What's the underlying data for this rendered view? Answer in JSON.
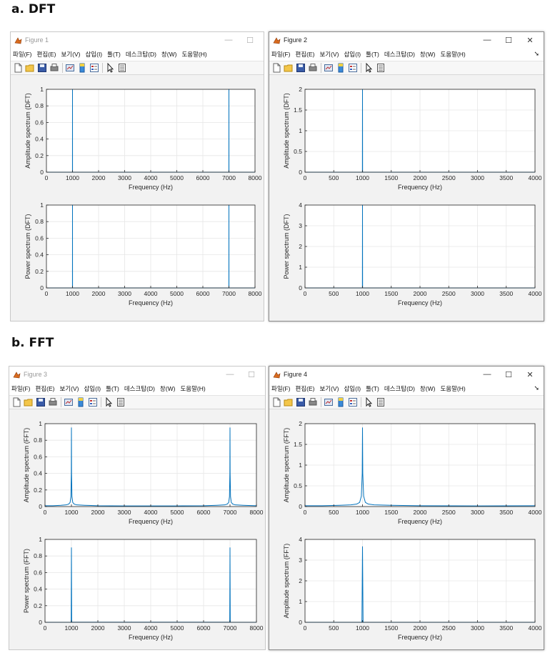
{
  "sections": [
    {
      "label": "a. DFT"
    },
    {
      "label": "b. FFT"
    }
  ],
  "menu": [
    "파일(F)",
    "편집(E)",
    "보기(V)",
    "삽입(I)",
    "툴(T)",
    "데스크탑(D)",
    "창(W)",
    "도움말(H)"
  ],
  "window_buttons": {
    "minimize": "—",
    "maximize": "☐",
    "close": "✕"
  },
  "icons": [
    "new-file-icon",
    "open-folder-icon",
    "save-icon",
    "print-icon",
    "link-plot-icon",
    "colorbar-icon",
    "legend-icon",
    "pointer-icon",
    "property-inspector-icon"
  ],
  "colors": {
    "line": "#0072bd",
    "grid": "#e6e6e6",
    "axes_bg": "#ffffff",
    "figure_bg": "#f2f2f2"
  },
  "figures": [
    {
      "title": "Figure 1",
      "active": false,
      "chart_data": [
        {
          "type": "line",
          "xlabel": "Frequency (Hz)",
          "ylabel": "Amplitude spectrum (DFT)",
          "xlim": [
            0,
            8000
          ],
          "ylim": [
            0,
            1
          ],
          "xticks": [
            0,
            1000,
            2000,
            3000,
            4000,
            5000,
            6000,
            7000,
            8000
          ],
          "yticks": [
            0,
            0.2,
            0.4,
            0.6,
            0.8,
            1
          ],
          "ytick_labels": [
            "0",
            "0.2",
            "0.4",
            "0.6",
            "0.8",
            "1"
          ],
          "grid": true,
          "series": [
            {
              "x": [
                0,
                998,
                1000,
                1002,
                6998,
                7000,
                7002,
                8000
              ],
              "y": [
                0,
                0,
                1,
                0,
                0,
                1,
                0,
                0
              ]
            }
          ]
        },
        {
          "type": "line",
          "xlabel": "Frequency (Hz)",
          "ylabel": "Power spectrum (DFT)",
          "xlim": [
            0,
            8000
          ],
          "ylim": [
            0,
            1
          ],
          "xticks": [
            0,
            1000,
            2000,
            3000,
            4000,
            5000,
            6000,
            7000,
            8000
          ],
          "yticks": [
            0,
            0.2,
            0.4,
            0.6,
            0.8,
            1
          ],
          "ytick_labels": [
            "0",
            "0.2",
            "0.4",
            "0.6",
            "0.8",
            "1"
          ],
          "grid": true,
          "series": [
            {
              "x": [
                0,
                998,
                1000,
                1002,
                6998,
                7000,
                7002,
                8000
              ],
              "y": [
                0,
                0,
                1,
                0,
                0,
                1,
                0,
                0
              ]
            }
          ]
        }
      ]
    },
    {
      "title": "Figure 2",
      "active": true,
      "chart_data": [
        {
          "type": "line",
          "xlabel": "Frequency (Hz)",
          "ylabel": "Amplitude spectrum (DFT)",
          "xlim": [
            0,
            4000
          ],
          "ylim": [
            0,
            2
          ],
          "xticks": [
            0,
            500,
            1000,
            1500,
            2000,
            2500,
            3000,
            3500,
            4000
          ],
          "yticks": [
            0,
            0.5,
            1,
            1.5,
            2
          ],
          "ytick_labels": [
            "0",
            "0.5",
            "1",
            "1.5",
            "2"
          ],
          "grid": true,
          "series": [
            {
              "x": [
                0,
                998,
                1000,
                1002,
                4000
              ],
              "y": [
                0,
                0,
                2,
                0,
                0
              ]
            }
          ]
        },
        {
          "type": "line",
          "xlabel": "Frequency (Hz)",
          "ylabel": "Power spectrum (DFT)",
          "xlim": [
            0,
            4000
          ],
          "ylim": [
            0,
            4
          ],
          "xticks": [
            0,
            500,
            1000,
            1500,
            2000,
            2500,
            3000,
            3500,
            4000
          ],
          "yticks": [
            0,
            1,
            2,
            3,
            4
          ],
          "ytick_labels": [
            "0",
            "1",
            "2",
            "3",
            "4"
          ],
          "grid": true,
          "series": [
            {
              "x": [
                0,
                998,
                1000,
                1002,
                4000
              ],
              "y": [
                0,
                0,
                4,
                0,
                0
              ]
            }
          ]
        }
      ]
    },
    {
      "title": "Figure 3",
      "active": false,
      "chart_data": [
        {
          "type": "line",
          "xlabel": "Frequency (Hz)",
          "ylabel": "Amplitude spectrum (FFT)",
          "xlim": [
            0,
            8000
          ],
          "ylim": [
            0,
            1
          ],
          "xticks": [
            0,
            1000,
            2000,
            3000,
            4000,
            5000,
            6000,
            7000,
            8000
          ],
          "yticks": [
            0,
            0.2,
            0.4,
            0.6,
            0.8,
            1
          ],
          "ytick_labels": [
            "0",
            "0.2",
            "0.4",
            "0.6",
            "0.8",
            "1"
          ],
          "grid": true,
          "series": [
            {
              "x": [
                0,
                300,
                600,
                800,
                900,
                950,
                980,
                995,
                1000,
                1005,
                1020,
                1050,
                1100,
                1200,
                1500,
                2000,
                3000,
                4000,
                5000,
                6000,
                6500,
                6800,
                6900,
                6950,
                6980,
                6995,
                7000,
                7005,
                7020,
                7050,
                7100,
                7200,
                7500,
                8000
              ],
              "y": [
                0.01,
                0.01,
                0.015,
                0.02,
                0.03,
                0.05,
                0.12,
                0.4,
                0.95,
                0.4,
                0.12,
                0.05,
                0.03,
                0.02,
                0.015,
                0.01,
                0.008,
                0.008,
                0.008,
                0.01,
                0.015,
                0.02,
                0.03,
                0.05,
                0.12,
                0.4,
                0.95,
                0.4,
                0.12,
                0.05,
                0.03,
                0.02,
                0.015,
                0.01
              ]
            }
          ]
        },
        {
          "type": "line",
          "xlabel": "Frequency (Hz)",
          "ylabel": "Power spectrum (FFT)",
          "xlim": [
            0,
            8000
          ],
          "ylim": [
            0,
            1
          ],
          "xticks": [
            0,
            1000,
            2000,
            3000,
            4000,
            5000,
            6000,
            7000,
            8000
          ],
          "yticks": [
            0,
            0.2,
            0.4,
            0.6,
            0.8,
            1
          ],
          "ytick_labels": [
            "0",
            "0.2",
            "0.4",
            "0.6",
            "0.8",
            "1"
          ],
          "grid": true,
          "series": [
            {
              "x": [
                0,
                990,
                1000,
                1010,
                6990,
                7000,
                7010,
                8000
              ],
              "y": [
                0,
                0.001,
                0.9,
                0.001,
                0.001,
                0.9,
                0.001,
                0
              ]
            }
          ]
        }
      ]
    },
    {
      "title": "Figure 4",
      "active": true,
      "chart_data": [
        {
          "type": "line",
          "xlabel": "Frequency (Hz)",
          "ylabel": "Amplitude spectrum (FFT)",
          "xlim": [
            0,
            4000
          ],
          "ylim": [
            0,
            2
          ],
          "xticks": [
            0,
            500,
            1000,
            1500,
            2000,
            2500,
            3000,
            3500,
            4000
          ],
          "yticks": [
            0,
            0.5,
            1,
            1.5,
            2
          ],
          "ytick_labels": [
            "0",
            "0.5",
            "1",
            "1.5",
            "2"
          ],
          "grid": true,
          "series": [
            {
              "x": [
                0,
                300,
                600,
                800,
                900,
                950,
                980,
                995,
                1000,
                1005,
                1020,
                1050,
                1100,
                1200,
                1500,
                2000,
                3000,
                4000
              ],
              "y": [
                0.02,
                0.02,
                0.03,
                0.04,
                0.06,
                0.1,
                0.25,
                0.8,
                1.9,
                0.8,
                0.25,
                0.1,
                0.06,
                0.04,
                0.03,
                0.02,
                0.015,
                0.02
              ]
            }
          ]
        },
        {
          "type": "line",
          "xlabel": "Frequency (Hz)",
          "ylabel": "Amplitude spectrum (FFT)",
          "xlim": [
            0,
            4000
          ],
          "ylim": [
            0,
            4
          ],
          "xticks": [
            0,
            500,
            1000,
            1500,
            2000,
            2500,
            3000,
            3500,
            4000
          ],
          "yticks": [
            0,
            1,
            2,
            3,
            4
          ],
          "ytick_labels": [
            "0",
            "1",
            "2",
            "3",
            "4"
          ],
          "grid": true,
          "series": [
            {
              "x": [
                0,
                990,
                1000,
                1010,
                4000
              ],
              "y": [
                0,
                0.002,
                3.65,
                0.002,
                0
              ]
            }
          ]
        }
      ]
    }
  ]
}
